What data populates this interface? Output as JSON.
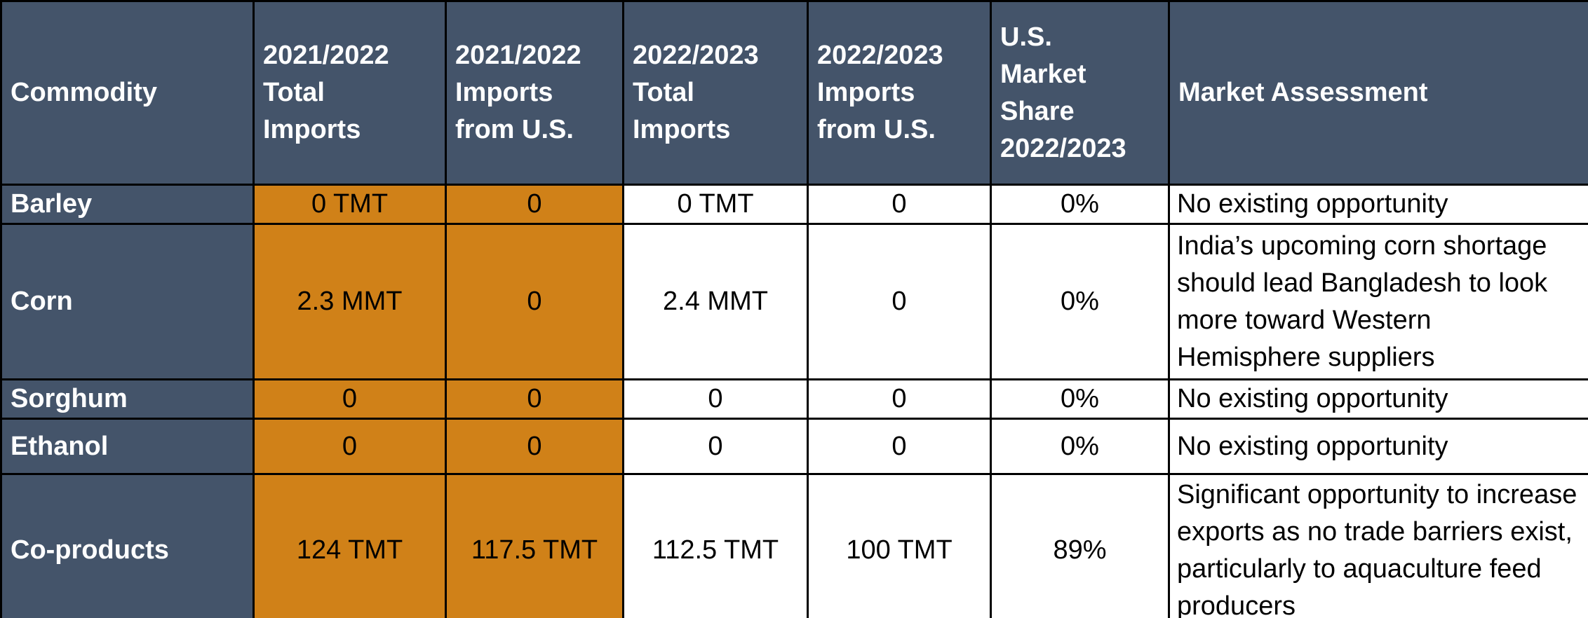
{
  "table": {
    "header": [
      [
        "Commodity"
      ],
      [
        "2021/2022",
        "Total",
        "Imports"
      ],
      [
        "2021/2022",
        "Imports",
        "from U.S."
      ],
      [
        "2022/2023",
        "Total",
        "Imports"
      ],
      [
        "2022/2023",
        "Imports",
        "from U.S."
      ],
      [
        "U.S.",
        "Market",
        "Share",
        "2022/2023"
      ],
      [
        "Market Assessment"
      ]
    ],
    "rows": [
      [
        "Barley",
        "0 TMT",
        "0",
        "0 TMT",
        "0",
        "0%",
        "No existing opportunity"
      ],
      [
        "Corn",
        "2.3 MMT",
        "0",
        "2.4 MMT",
        "0",
        "0%",
        "India’s upcoming corn shortage should lead Bangladesh to look more toward Western Hemisphere suppliers"
      ],
      [
        "Sorghum",
        "0",
        "0",
        "0",
        "0",
        "0%",
        "No existing opportunity"
      ],
      [
        "Ethanol",
        "0",
        "0",
        "0",
        "0",
        "0%",
        "No existing opportunity"
      ],
      [
        "Co-products",
        "124 TMT",
        "117.5 TMT",
        "112.5 TMT",
        "100 TMT",
        "89%",
        "Significant opportunity to increase exports as no trade barriers exist, particularly to aquaculture feed producers"
      ]
    ]
  }
}
